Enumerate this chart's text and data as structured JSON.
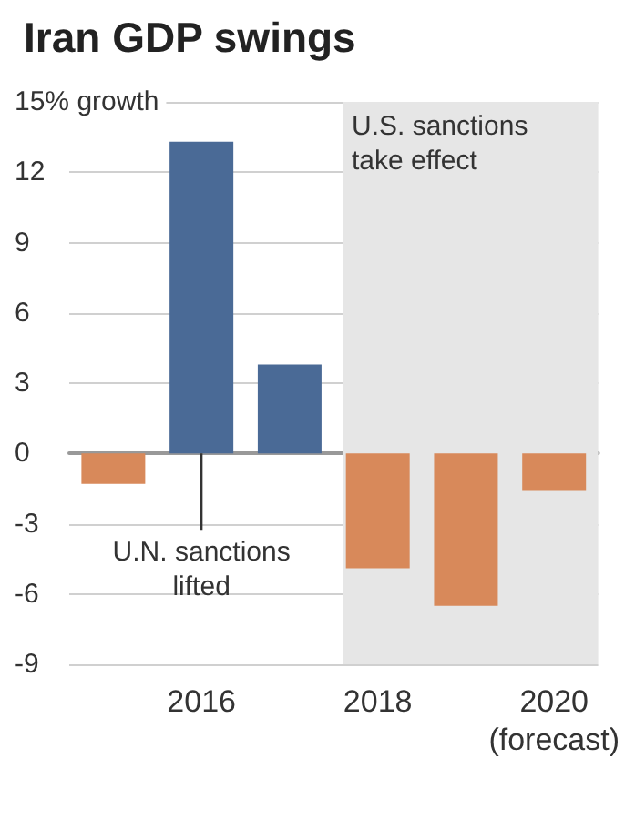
{
  "chart_data": {
    "type": "bar",
    "title": "Iran GDP swings",
    "x": [
      2015,
      2016,
      2017,
      2018,
      2019,
      2020
    ],
    "values": [
      -1.3,
      13.3,
      3.8,
      -4.9,
      -6.5,
      -1.6
    ],
    "colors": [
      "#d8895a",
      "#4a6a96",
      "#4a6a96",
      "#d8895a",
      "#d8895a",
      "#d8895a"
    ],
    "xlim": [
      2014.5,
      2020.5
    ],
    "xticks": [
      2016,
      2018,
      {
        "value": 2020,
        "label": "2020\n(forecast)"
      }
    ],
    "ylim": [
      -9,
      15
    ],
    "yticks": [
      -9,
      -6,
      -3,
      0,
      3,
      6,
      9,
      12,
      {
        "value": 15,
        "label": "15% growth"
      }
    ],
    "grid": "y",
    "bands": [
      {
        "axis": "x",
        "from": 2017.6,
        "to": 2020.5,
        "label": "U.S. sanctions\ntake effect",
        "color": "#e6e6e6"
      }
    ],
    "annotations": [
      {
        "text": "U.N. sanctions\nlifted",
        "x": 2016,
        "y": 0
      }
    ]
  }
}
